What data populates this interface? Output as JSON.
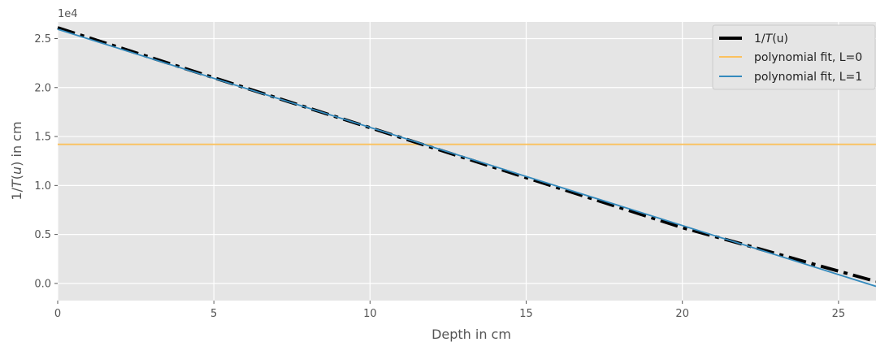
{
  "chart_data": {
    "type": "line",
    "xlabel": "Depth in cm",
    "ylabel": "1/T(u) in cm",
    "ylabel_parts": [
      "1/",
      "T",
      "(",
      "u",
      ") in cm"
    ],
    "y_offset_text": "1e4",
    "xlim": [
      0,
      26.2
    ],
    "ylim": [
      -1750,
      26700
    ],
    "xticks": [
      0,
      5,
      10,
      15,
      20,
      25
    ],
    "xtick_labels": [
      "0",
      "5",
      "10",
      "15",
      "20",
      "25"
    ],
    "yticks": [
      0,
      5000,
      10000,
      15000,
      20000,
      25000
    ],
    "ytick_labels": [
      "0.0",
      "0.5",
      "1.0",
      "1.5",
      "2.0",
      "2.5"
    ],
    "grid": true,
    "legend_position": "top-right",
    "series": [
      {
        "name": "1/T(u)",
        "legend_parts": [
          "1/",
          "T",
          "(u)"
        ],
        "style": "dashdot",
        "color": "#000000",
        "x": [
          0,
          5,
          10,
          15,
          20,
          22,
          24,
          26.2
        ],
        "y": [
          26100,
          21000,
          15900,
          10800,
          5700,
          3950,
          2150,
          200
        ]
      },
      {
        "name": "polynomial fit, L=0",
        "style": "solid",
        "color": "#fbc15e",
        "x": [
          0,
          26.2
        ],
        "y": [
          14200,
          14200
        ]
      },
      {
        "name": "polynomial fit, L=1",
        "style": "solid",
        "color": "#348abd",
        "x": [
          0,
          26.2
        ],
        "y": [
          25950,
          -300
        ]
      }
    ]
  }
}
